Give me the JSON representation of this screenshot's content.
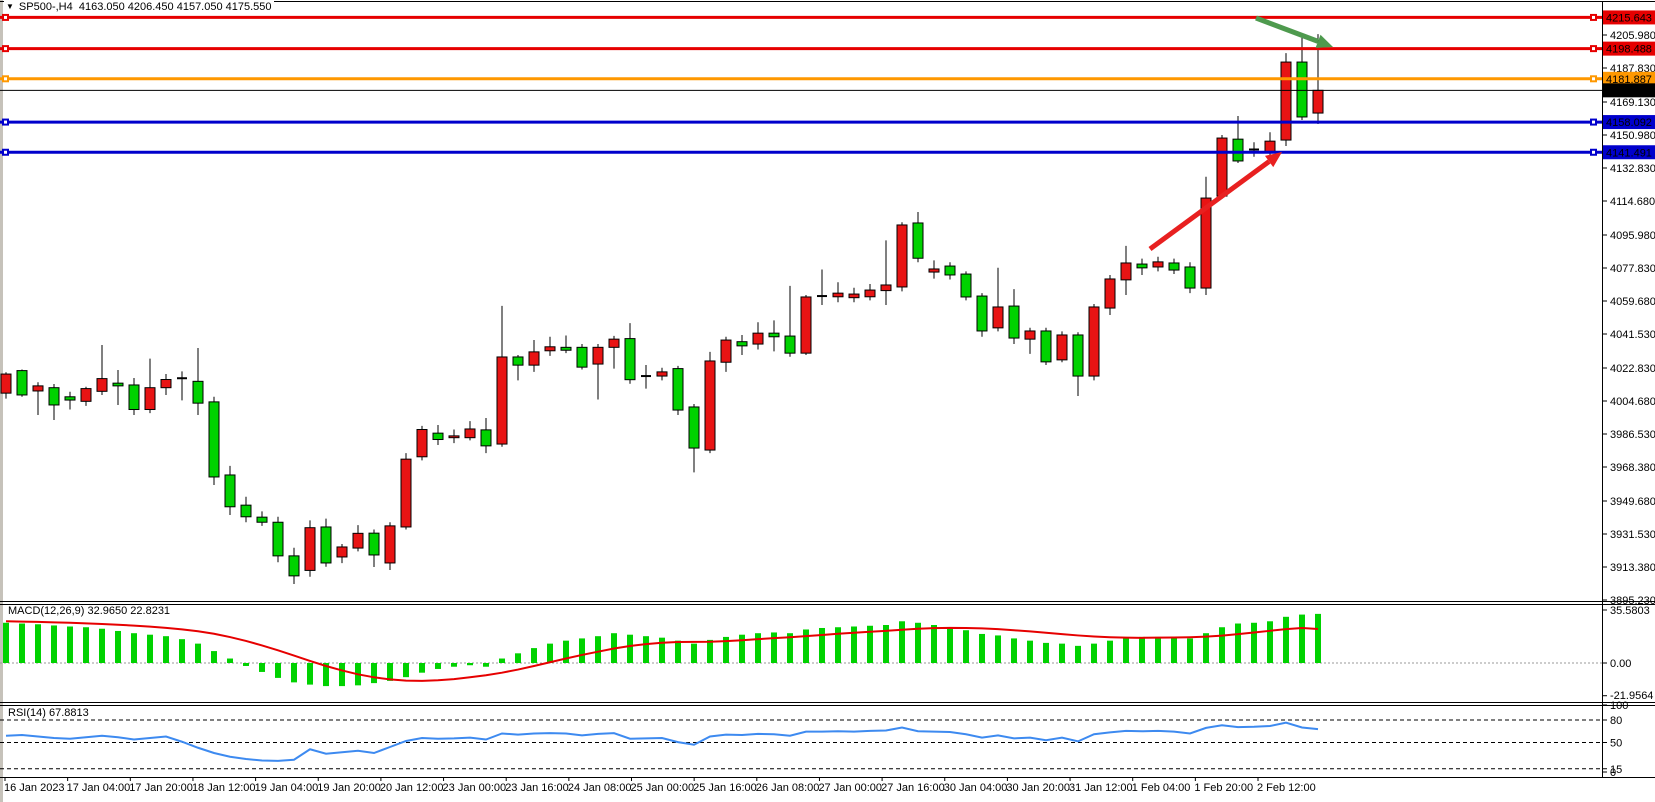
{
  "header": {
    "title": "SP500-,H4  4163.050 4206.450 4157.050 4175.550"
  },
  "panels": {
    "macd_label": "MACD(12,26,9) 32.9650 22.8231",
    "rsi_label": "RSI(14) 67.8813"
  },
  "chart_data": {
    "type": "candlestick",
    "symbol": "SP500-",
    "timeframe": "H4",
    "current_bar": {
      "open": 4163.05,
      "high": 4206.45,
      "low": 4157.05,
      "close": 4175.55
    },
    "price_axis_ticks": [
      "4205.980",
      "4187.830",
      "4169.130",
      "4150.980",
      "4132.830",
      "4114.680",
      "4095.980",
      "4077.830",
      "4059.680",
      "4041.530",
      "4022.830",
      "4004.680",
      "3986.530",
      "3968.380",
      "3949.680",
      "3931.530",
      "3913.380",
      "3895.230"
    ],
    "time_axis_labels": [
      "16 Jan 2023",
      "17 Jan 04:00",
      "17 Jan 20:00",
      "18 Jan 12:00",
      "19 Jan 04:00",
      "19 Jan 20:00",
      "20 Jan 12:00",
      "23 Jan 00:00",
      "23 Jan 16:00",
      "24 Jan 08:00",
      "25 Jan 00:00",
      "25 Jan 16:00",
      "26 Jan 08:00",
      "27 Jan 00:00",
      "27 Jan 16:00",
      "30 Jan 04:00",
      "30 Jan 20:00",
      "31 Jan 12:00",
      "1 Feb 04:00",
      "1 Feb 20:00",
      "2 Feb 12:00"
    ],
    "candles_ohlc": [
      [
        4009,
        4020.5,
        4006,
        4019.5
      ],
      [
        4021.4,
        4022,
        4007,
        4008
      ],
      [
        4010.2,
        4015,
        3997,
        4013
      ],
      [
        4012,
        4014,
        3994.2,
        4002.5
      ],
      [
        4007,
        4009.8,
        4000,
        4005.2
      ],
      [
        4004.5,
        4012.5,
        4002,
        4011.5
      ],
      [
        4010,
        4035.5,
        4008,
        4017
      ],
      [
        4014.5,
        4021.7,
        4002.5,
        4013
      ],
      [
        4013.5,
        4017.3,
        3997,
        4000
      ],
      [
        4000,
        4028,
        3998,
        4012
      ],
      [
        4012,
        4019.5,
        4008,
        4016.5
      ],
      [
        4017,
        4021,
        4005,
        4017.2
      ],
      [
        4015.5,
        4033.8,
        3997,
        4003.5
      ],
      [
        4004.2,
        4007,
        3958.5,
        3962.9
      ],
      [
        3964,
        3969,
        3942,
        3946.5
      ],
      [
        3947.4,
        3952,
        3938,
        3941
      ],
      [
        3940.8,
        3944,
        3936,
        3938
      ],
      [
        3938,
        3941,
        3916,
        3919.5
      ],
      [
        3919.5,
        3924,
        3904,
        3908.5
      ],
      [
        3911.5,
        3939,
        3908,
        3935
      ],
      [
        3935.4,
        3940,
        3913.5,
        3915.6
      ],
      [
        3918.9,
        3926,
        3915.5,
        3924.4
      ],
      [
        3923.8,
        3936.4,
        3922,
        3931.9
      ],
      [
        3932,
        3934,
        3913.4,
        3920
      ],
      [
        3915.6,
        3938,
        3911.7,
        3936
      ],
      [
        3935.4,
        3976,
        3934,
        3972.7
      ],
      [
        3974,
        3991,
        3972,
        3989
      ],
      [
        3987,
        3991.5,
        3980.5,
        3983.5
      ],
      [
        3984.5,
        3989,
        3981.5,
        3985.5
      ],
      [
        3984.5,
        3993.6,
        3983,
        3989.3
      ],
      [
        3988.8,
        3995.3,
        3976,
        3980
      ],
      [
        3981,
        4057,
        3979.5,
        4028.9
      ],
      [
        4028.9,
        4030,
        4016,
        4024.4
      ],
      [
        4024.4,
        4038.2,
        4020.7,
        4031.7
      ],
      [
        4032.3,
        4040,
        4029.5,
        4034.5
      ],
      [
        4034.2,
        4040.7,
        4031,
        4032.6
      ],
      [
        4034.2,
        4036,
        4022,
        4023.3
      ],
      [
        4025,
        4036,
        4005.5,
        4034.2
      ],
      [
        4034.2,
        4040.5,
        4022.5,
        4038.7
      ],
      [
        4039,
        4047.5,
        4014.2,
        4016.4
      ],
      [
        4018,
        4024.5,
        4011.5,
        4018.4
      ],
      [
        4018.4,
        4023,
        4016,
        4020.7
      ],
      [
        4022.5,
        4024,
        3997,
        3999.7
      ],
      [
        4001.4,
        4003,
        3965.4,
        3978.8
      ],
      [
        3977.7,
        4031.7,
        3976,
        4026.7
      ],
      [
        4026,
        4040,
        4020.7,
        4038.2
      ],
      [
        4037.3,
        4041,
        4030,
        4035
      ],
      [
        4036,
        4048,
        4033,
        4042
      ],
      [
        4042,
        4049,
        4032,
        4040
      ],
      [
        4040.4,
        4068,
        4029,
        4031
      ],
      [
        4031,
        4063,
        4030,
        4061.9
      ],
      [
        4062,
        4077,
        4057.5,
        4062.4
      ],
      [
        4062,
        4070,
        4059,
        4064
      ],
      [
        4061.5,
        4067,
        4059,
        4063.5
      ],
      [
        4062,
        4069,
        4060,
        4065.7
      ],
      [
        4065.4,
        4093,
        4057.5,
        4068.5
      ],
      [
        4067.4,
        4103,
        4065,
        4101.5
      ],
      [
        4102.6,
        4108.6,
        4081,
        4083.2
      ],
      [
        4075.6,
        4082,
        4072,
        4077.3
      ],
      [
        4078.9,
        4081,
        4071.5,
        4074
      ],
      [
        4074.5,
        4076,
        4060,
        4061.9
      ],
      [
        4062.4,
        4064,
        4040,
        4043.2
      ],
      [
        4044.9,
        4078,
        4043,
        4056.4
      ],
      [
        4056.9,
        4066.2,
        4036,
        4039.3
      ],
      [
        4038.7,
        4045,
        4030.6,
        4043.2
      ],
      [
        4043.2,
        4045,
        4024.5,
        4026.2
      ],
      [
        4027.3,
        4043,
        4026,
        4041
      ],
      [
        4041,
        4042.5,
        4007.4,
        4018.4
      ],
      [
        4018.4,
        4058,
        4016,
        4056.4
      ],
      [
        4055.8,
        4074,
        4052,
        4071.8
      ],
      [
        4071.3,
        4090,
        4063,
        4080.6
      ],
      [
        4080,
        4083,
        4074,
        4077.9
      ],
      [
        4078.4,
        4084,
        4076,
        4081.2
      ],
      [
        4080.6,
        4083,
        4074.5,
        4076.7
      ],
      [
        4078.4,
        4081,
        4064,
        4066.8
      ],
      [
        4066.8,
        4128,
        4063,
        4116.3
      ],
      [
        4117.4,
        4151,
        4115.8,
        4149.3
      ],
      [
        4148.7,
        4161.4,
        4135.6,
        4136.7
      ],
      [
        4142.5,
        4147,
        4139,
        4143
      ],
      [
        4141.6,
        4152.5,
        4140,
        4147.6
      ],
      [
        4148.2,
        4196,
        4144.9,
        4191.1
      ],
      [
        4191.1,
        4207.1,
        4159.2,
        4160.9
      ],
      [
        4163.05,
        4206.45,
        4157.05,
        4175.55
      ]
    ],
    "indicators": {
      "macd": {
        "name": "MACD(12,26,9)",
        "current_values": [
          "32.9650",
          "22.8231"
        ],
        "axis_labels": [
          {
            "text": "35.5803",
            "value": 35.5803
          },
          {
            "text": "0.00",
            "value": 0
          },
          {
            "text": "-21.9564",
            "value": -21.9564
          }
        ],
        "histogram": [
          27,
          26.5,
          26,
          25.2,
          24.5,
          24,
          23,
          21.5,
          20,
          19,
          18,
          16,
          13,
          8,
          3,
          -2,
          -6,
          -10,
          -13,
          -14.5,
          -15.5,
          -15.5,
          -15,
          -13.5,
          -12,
          -9.5,
          -6.5,
          -4,
          -2.5,
          -1.5,
          -2.5,
          3,
          6.5,
          10,
          13,
          15,
          16.5,
          18,
          20,
          19,
          18,
          17,
          15,
          13,
          15.5,
          17.5,
          19,
          20,
          20.5,
          20,
          22.5,
          23.5,
          24,
          24.5,
          25,
          25.5,
          28,
          27,
          25.5,
          24,
          22,
          19.5,
          18.5,
          16.5,
          15,
          13.5,
          13,
          11.5,
          13,
          15,
          17,
          17.5,
          17.5,
          17,
          16.5,
          20,
          24,
          26.5,
          27,
          28,
          31,
          32.5,
          32.965
        ],
        "signal": [
          28,
          27.8,
          27.6,
          27.3,
          27,
          26.6,
          26.2,
          25.7,
          25.1,
          24.4,
          23.6,
          22.6,
          21.3,
          19.6,
          17.4,
          14.8,
          11.8,
          8.5,
          5,
          1.4,
          -2,
          -5,
          -7.6,
          -9.6,
          -11,
          -11.8,
          -12,
          -11.6,
          -10.8,
          -9.6,
          -8.2,
          -6.5,
          -4.4,
          -2,
          0.5,
          3,
          5.4,
          7.6,
          9.7,
          11.4,
          12.7,
          13.6,
          14.1,
          14.2,
          14.3,
          14.7,
          15.3,
          16,
          16.7,
          17.3,
          18,
          18.8,
          19.6,
          20.3,
          21,
          21.6,
          22.3,
          23,
          23.4,
          23.6,
          23.5,
          23.2,
          22.7,
          22,
          21.2,
          20.3,
          19.4,
          18.5,
          17.8,
          17.3,
          17,
          16.9,
          17,
          17.1,
          17.3,
          17.7,
          18.4,
          19.4,
          20.5,
          21.6,
          22.7,
          23.5,
          22.8231
        ]
      },
      "rsi": {
        "name": "RSI(14)",
        "current_value": 67.8813,
        "axis_labels": [
          {
            "text": "100",
            "value": 100
          },
          {
            "text": "80",
            "value": 80
          },
          {
            "text": "50",
            "value": 50
          },
          {
            "text": "15",
            "value": 15
          },
          {
            "text": "0",
            "value": 0
          }
        ],
        "dashed_levels": [
          80,
          50,
          15
        ],
        "series": [
          59,
          60,
          58,
          56,
          55,
          57,
          59,
          57,
          54,
          56,
          58,
          51,
          43,
          36,
          31,
          28,
          26,
          25.5,
          27,
          41,
          35,
          37,
          39,
          36,
          44,
          52,
          56,
          55,
          55.5,
          56.5,
          54,
          62,
          60.5,
          62,
          62.5,
          62,
          59.5,
          61.5,
          62.5,
          55,
          55.5,
          56,
          50.5,
          47,
          58,
          60.5,
          60,
          61.5,
          61,
          59,
          64.5,
          64.5,
          65,
          64.5,
          65.5,
          66,
          70,
          65,
          64.5,
          64,
          61,
          56.5,
          59.5,
          55.5,
          56.5,
          53,
          56.5,
          51.5,
          61,
          63.5,
          65.5,
          65,
          65.5,
          64.5,
          62,
          69.5,
          73,
          70.5,
          71,
          72,
          76.5,
          70,
          67.88
        ]
      }
    },
    "horizontal_lines": [
      {
        "label": "4215.643",
        "value": 4215.643,
        "color": "#e60000"
      },
      {
        "label": "4198.488",
        "value": 4198.488,
        "color": "#e60000"
      },
      {
        "label": "4181.887",
        "value": 4181.887,
        "color": "#ff9800"
      },
      {
        "label": "4158.092",
        "value": 4158.092,
        "color": "#0000cc"
      },
      {
        "label": "4141.491",
        "value": 4141.491,
        "color": "#0000cc"
      }
    ],
    "current_price_line": {
      "label": "4175.550",
      "value": 4175.55,
      "color": "#000000"
    },
    "arrows": [
      {
        "name": "up-trend-arrow",
        "color": "#e82020",
        "from": [
          1150,
          249
        ],
        "to": [
          1282,
          152
        ]
      },
      {
        "name": "resistance-down-arrow",
        "color": "#4e9a4e",
        "from": [
          1256,
          18
        ],
        "to": [
          1333,
          47
        ]
      }
    ],
    "colors": {
      "bullish": "#e81414",
      "bearish": "#00d200",
      "doji": "#000000",
      "wick": "#000000",
      "macd_histogram": "#00d200",
      "macd_signal": "#e60000",
      "rsi_line": "#3d8af0"
    },
    "y_axis_range": [
      3893,
      4219
    ],
    "grid": false,
    "background": "#ffffff"
  }
}
